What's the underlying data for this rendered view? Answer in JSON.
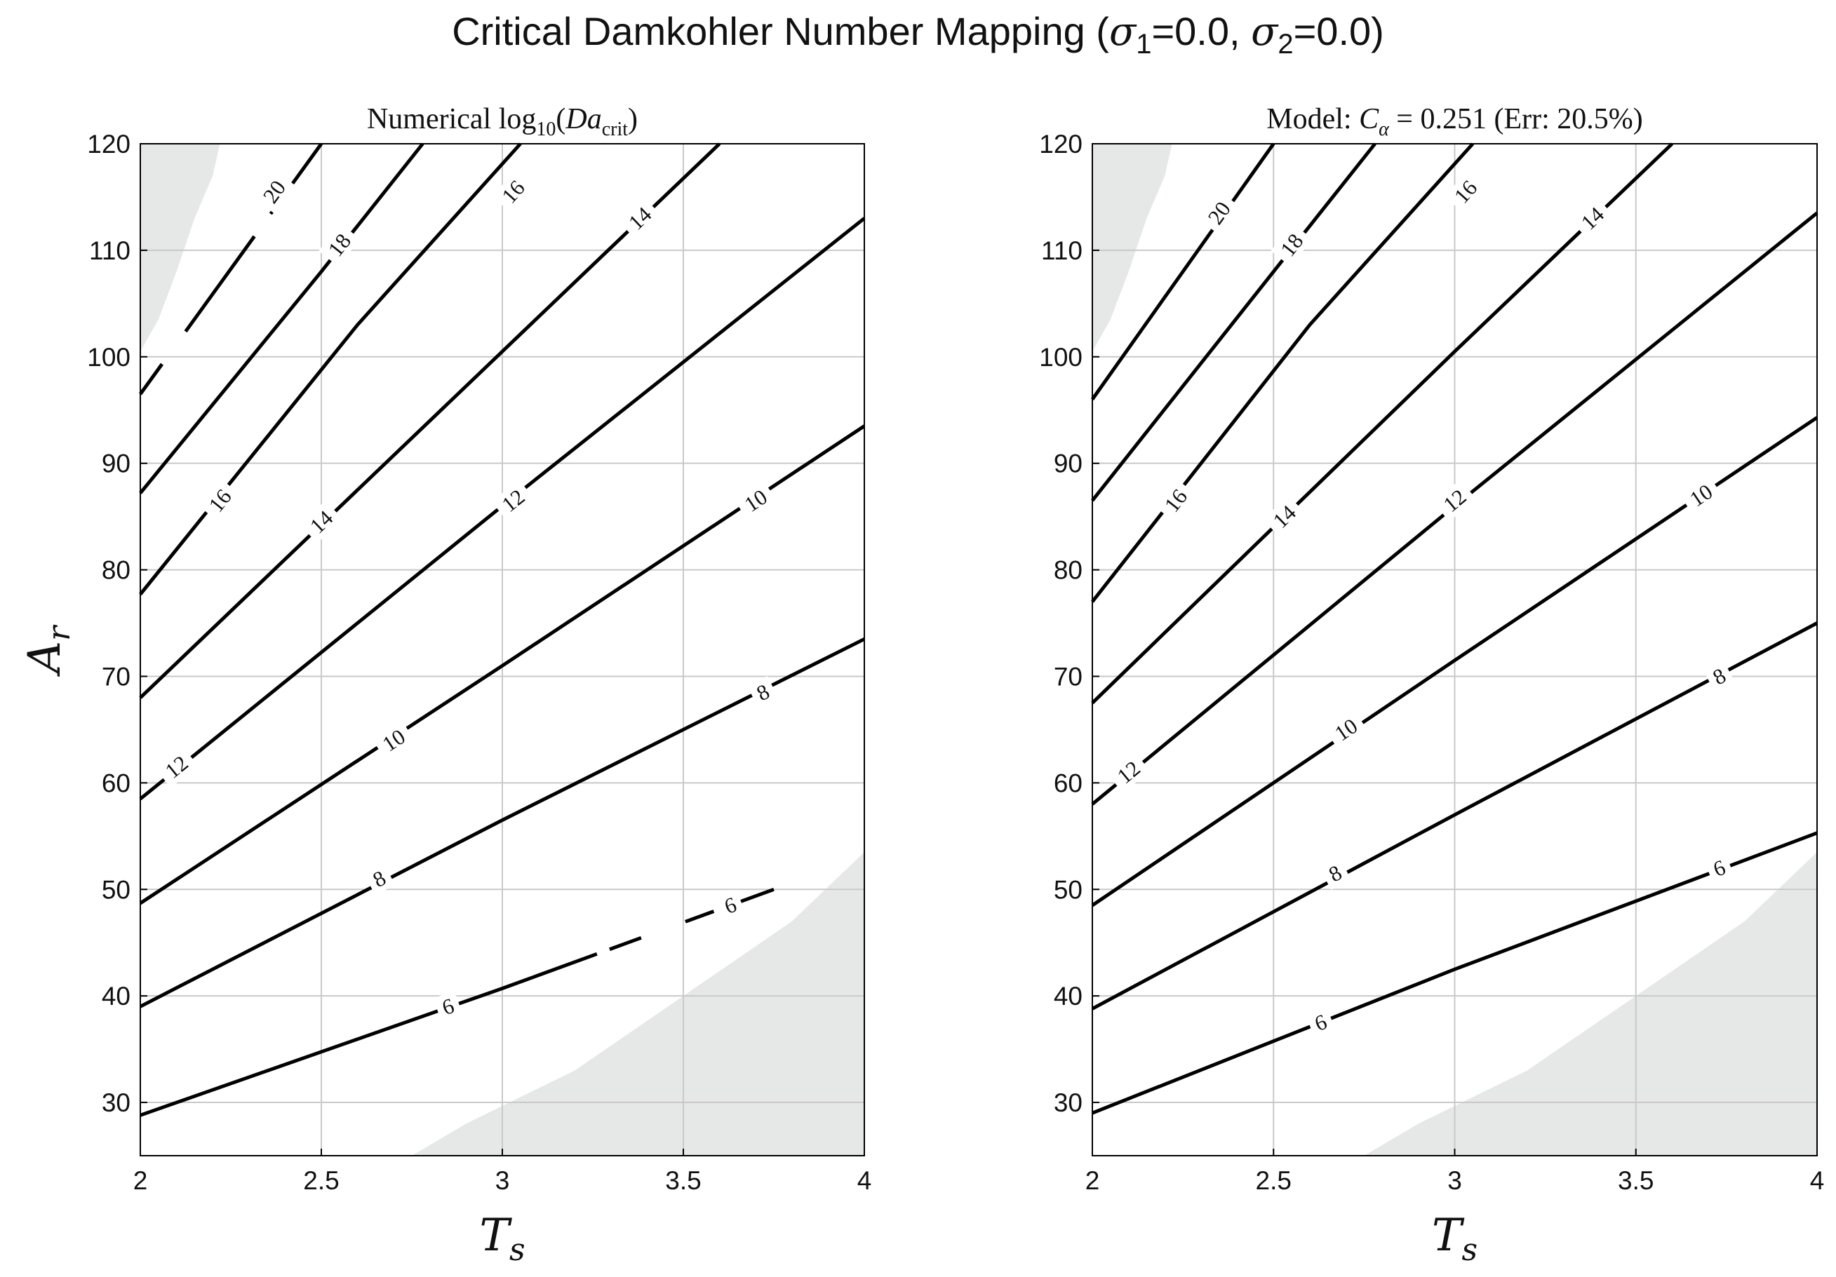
{
  "figure": {
    "title_main": "Critical Damkohler Number Mapping (",
    "sigma1_label": "σ",
    "sigma1_sub": "1",
    "sigma1_value": "=0.0, ",
    "sigma2_label": "σ",
    "sigma2_sub": "2",
    "sigma2_value": "=0.0)"
  },
  "chart_data": [
    {
      "type": "contour",
      "title": "Numerical log10(Da_crit)",
      "title_parts": {
        "prefix": "Numerical log",
        "sub": "10",
        "open": "(",
        "var": "Da",
        "var_sub": "crit",
        "close": ")"
      },
      "xlabel": "T",
      "xlabel_sub": "s",
      "ylabel": "A",
      "ylabel_sub": "r",
      "xlim": [
        2,
        4
      ],
      "ylim": [
        25,
        120
      ],
      "xticks": [
        "2",
        "2.5",
        "3",
        "3.5",
        "4"
      ],
      "yticks": [
        "30",
        "40",
        "50",
        "60",
        "70",
        "80",
        "90",
        "100",
        "110",
        "120"
      ],
      "grid": true,
      "line_color": "#000000",
      "shade_color": "#e6e7e7",
      "shaded_regions": [
        {
          "name": "upper-left",
          "polygon": [
            [
              2,
              100.5
            ],
            [
              2.05,
              103.5
            ],
            [
              2.1,
              108
            ],
            [
              2.15,
              113
            ],
            [
              2.2,
              117
            ],
            [
              2.22,
              120
            ],
            [
              2,
              120
            ]
          ]
        },
        {
          "name": "lower-right",
          "polygon": [
            [
              2.75,
              25
            ],
            [
              2.9,
              28
            ],
            [
              3.2,
              33
            ],
            [
              3.5,
              40
            ],
            [
              3.8,
              47
            ],
            [
              4,
              53.5
            ],
            [
              4,
              25
            ]
          ]
        }
      ],
      "contours": [
        {
          "level": 6,
          "points": [
            [
              2,
              28.8
            ],
            [
              3,
              40.7
            ],
            [
              3.75,
              50
            ]
          ],
          "gaps": [
            [
              0.72,
              0.74
            ],
            [
              0.79,
              0.86
            ],
            [
              0.905,
              0.93
            ]
          ],
          "labels": [
            {
              "text": "6",
              "x": 2.85,
              "y": 39
            },
            {
              "text": "6",
              "x": 3.63,
              "y": 48.5
            }
          ]
        },
        {
          "level": 8,
          "points": [
            [
              2,
              39
            ],
            [
              3,
              56.5
            ],
            [
              4,
              73.5
            ]
          ],
          "labels": [
            {
              "text": "8",
              "x": 2.66,
              "y": 51
            },
            {
              "text": "8",
              "x": 3.72,
              "y": 68.5
            }
          ]
        },
        {
          "level": 10,
          "points": [
            [
              2,
              48.7
            ],
            [
              3,
              71
            ],
            [
              4,
              93.5
            ]
          ],
          "labels": [
            {
              "text": "10",
              "x": 2.7,
              "y": 64
            },
            {
              "text": "10",
              "x": 3.7,
              "y": 86.5
            }
          ]
        },
        {
          "level": 12,
          "points": [
            [
              2,
              58.5
            ],
            [
              3,
              86
            ],
            [
              4,
              113
            ]
          ],
          "labels": [
            {
              "text": "12",
              "x": 2.1,
              "y": 61.5
            },
            {
              "text": "12",
              "x": 3.03,
              "y": 86.5
            }
          ]
        },
        {
          "level": 14,
          "points": [
            [
              2,
              68
            ],
            [
              3,
              100.5
            ],
            [
              3.6,
              120
            ]
          ],
          "labels": [
            {
              "text": "14",
              "x": 2.5,
              "y": 84.5
            },
            {
              "text": "14",
              "x": 3.38,
              "y": 113
            }
          ]
        },
        {
          "level": 16,
          "points": [
            [
              2,
              77.7
            ],
            [
              2.6,
              103
            ],
            [
              3.05,
              120
            ]
          ],
          "labels": [
            {
              "text": "16",
              "x": 2.22,
              "y": 86.5
            },
            {
              "text": "16",
              "x": 3.03,
              "y": 115.5
            }
          ]
        },
        {
          "level": 18,
          "points": [
            [
              2,
              87.2
            ],
            [
              2.5,
              108
            ],
            [
              2.78,
              120
            ]
          ],
          "labels": [
            {
              "text": "18",
              "x": 2.55,
              "y": 110.5
            }
          ]
        },
        {
          "level": 20,
          "points": [
            [
              2,
              96.5
            ],
            [
              2.5,
              120
            ]
          ],
          "gaps": [
            [
              0.12,
              0.25
            ],
            [
              0.63,
              0.72
            ]
          ],
          "labels": [
            {
              "text": "20",
              "x": 2.37,
              "y": 115.5
            }
          ]
        }
      ]
    },
    {
      "type": "contour",
      "title": "Model: C_α = 0.251 (Err: 20.5%)",
      "title_parts": {
        "prefix": "Model: ",
        "var": "C",
        "var_sub": "α",
        "rest": " = 0.251 (Err: 20.5%)"
      },
      "xlabel": "T",
      "xlabel_sub": "s",
      "ylabel": "",
      "ylabel_sub": "",
      "xlim": [
        2,
        4
      ],
      "ylim": [
        25,
        120
      ],
      "xticks": [
        "2",
        "2.5",
        "3",
        "3.5",
        "4"
      ],
      "yticks": [
        "30",
        "40",
        "50",
        "60",
        "70",
        "80",
        "90",
        "100",
        "110",
        "120"
      ],
      "grid": true,
      "line_color": "#000000",
      "shade_color": "#e6e7e7",
      "shaded_regions": [
        {
          "name": "upper-left",
          "polygon": [
            [
              2,
              100.5
            ],
            [
              2.05,
              103.5
            ],
            [
              2.1,
              108
            ],
            [
              2.15,
              113
            ],
            [
              2.2,
              117
            ],
            [
              2.22,
              120
            ],
            [
              2,
              120
            ]
          ]
        },
        {
          "name": "lower-right",
          "polygon": [
            [
              2.75,
              25
            ],
            [
              2.9,
              28
            ],
            [
              3.2,
              33
            ],
            [
              3.5,
              40
            ],
            [
              3.8,
              47
            ],
            [
              4,
              53.5
            ],
            [
              4,
              25
            ]
          ]
        }
      ],
      "contours": [
        {
          "level": 6,
          "points": [
            [
              2,
              29
            ],
            [
              3,
              42.5
            ],
            [
              4,
              55.3
            ]
          ],
          "labels": [
            {
              "text": "6",
              "x": 2.63,
              "y": 37.5
            },
            {
              "text": "6",
              "x": 3.73,
              "y": 52
            }
          ]
        },
        {
          "level": 8,
          "points": [
            [
              2,
              38.8
            ],
            [
              3,
              57
            ],
            [
              4,
              75
            ]
          ],
          "labels": [
            {
              "text": "8",
              "x": 2.67,
              "y": 51.5
            },
            {
              "text": "8",
              "x": 3.73,
              "y": 70
            }
          ]
        },
        {
          "level": 10,
          "points": [
            [
              2,
              48.5
            ],
            [
              3,
              71.5
            ],
            [
              4,
              94.3
            ]
          ],
          "labels": [
            {
              "text": "10",
              "x": 2.7,
              "y": 65
            },
            {
              "text": "10",
              "x": 3.68,
              "y": 87
            }
          ]
        },
        {
          "level": 12,
          "points": [
            [
              2,
              58
            ],
            [
              3,
              86
            ],
            [
              4,
              113.5
            ]
          ],
          "labels": [
            {
              "text": "12",
              "x": 2.1,
              "y": 61
            },
            {
              "text": "12",
              "x": 3.0,
              "y": 86.5
            }
          ]
        },
        {
          "level": 14,
          "points": [
            [
              2,
              67.5
            ],
            [
              3,
              100.5
            ],
            [
              3.6,
              120
            ]
          ],
          "labels": [
            {
              "text": "14",
              "x": 2.53,
              "y": 85
            },
            {
              "text": "14",
              "x": 3.38,
              "y": 113
            }
          ]
        },
        {
          "level": 16,
          "points": [
            [
              2,
              77
            ],
            [
              2.6,
              103
            ],
            [
              3.05,
              120
            ]
          ],
          "labels": [
            {
              "text": "16",
              "x": 2.23,
              "y": 86.5
            },
            {
              "text": "16",
              "x": 3.03,
              "y": 115.5
            }
          ]
        },
        {
          "level": 18,
          "points": [
            [
              2,
              86.5
            ],
            [
              2.5,
              108
            ],
            [
              2.78,
              120
            ]
          ],
          "labels": [
            {
              "text": "18",
              "x": 2.55,
              "y": 110.5
            }
          ]
        },
        {
          "level": 20,
          "points": [
            [
              2,
              96
            ],
            [
              2.5,
              120
            ]
          ],
          "labels": [
            {
              "text": "20",
              "x": 2.35,
              "y": 113.5
            }
          ]
        }
      ]
    }
  ]
}
